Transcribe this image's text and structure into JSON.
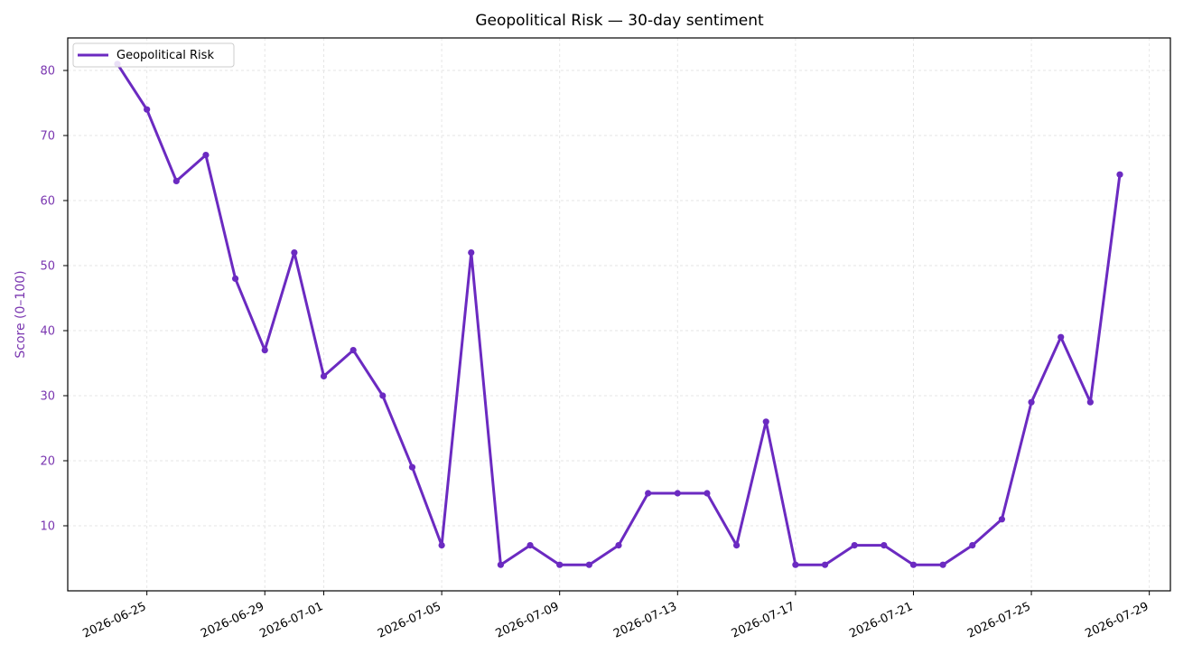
{
  "chart_data": {
    "type": "line",
    "title": "Geopolitical Risk — 30-day sentiment",
    "xlabel": "",
    "ylabel": "Score (0–100)",
    "x_start": "2026-06-24",
    "x_ticks": [
      "2026-06-25",
      "2026-06-29",
      "2026-07-01",
      "2026-07-05",
      "2026-07-09",
      "2026-07-13",
      "2026-07-17",
      "2026-07-21",
      "2026-07-25",
      "2026-07-29"
    ],
    "y_ticks": [
      10,
      20,
      30,
      40,
      50,
      60,
      70,
      80
    ],
    "ylim": [
      0,
      85
    ],
    "grid": true,
    "legend_position": "top-left",
    "series": [
      {
        "name": "Geopolitical Risk",
        "color": "#6b2ac1",
        "x": [
          "2026-06-24",
          "2026-06-25",
          "2026-06-26",
          "2026-06-27",
          "2026-06-28",
          "2026-06-29",
          "2026-06-30",
          "2026-07-01",
          "2026-07-02",
          "2026-07-03",
          "2026-07-04",
          "2026-07-05",
          "2026-07-06",
          "2026-07-07",
          "2026-07-08",
          "2026-07-09",
          "2026-07-10",
          "2026-07-11",
          "2026-07-12",
          "2026-07-13",
          "2026-07-14",
          "2026-07-15",
          "2026-07-16",
          "2026-07-17",
          "2026-07-18",
          "2026-07-19",
          "2026-07-20",
          "2026-07-21",
          "2026-07-22",
          "2026-07-23",
          "2026-07-24",
          "2026-07-25",
          "2026-07-26",
          "2026-07-27",
          "2026-07-28"
        ],
        "values": [
          81,
          74,
          63,
          67,
          48,
          37,
          52,
          33,
          37,
          30,
          19,
          7,
          52,
          4,
          7,
          4,
          4,
          7,
          15,
          15,
          15,
          7,
          26,
          4,
          4,
          7,
          7,
          4,
          4,
          7,
          11,
          29,
          39,
          29,
          64
        ]
      }
    ]
  }
}
